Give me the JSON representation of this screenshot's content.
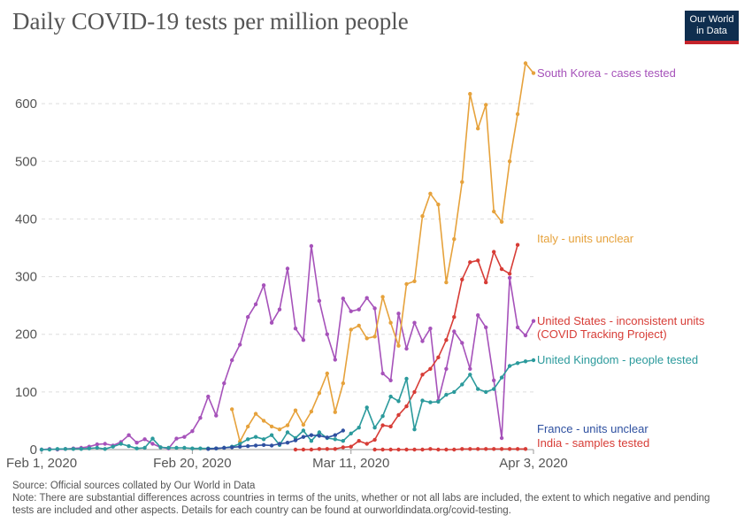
{
  "header": {
    "title": "Daily COVID-19 tests per million people",
    "logo_line1": "Our World",
    "logo_line2": "in Data"
  },
  "footer": {
    "source": "Source: Official sources collated by Our World in Data",
    "note": "Note: There are substantial differences across countries in terms of the units, whether or not all labs are included, the extent to which negative and pending tests are included and other aspects. Details for each country can be found at ourworldindata.org/covid-testing."
  },
  "chart_data": {
    "type": "line",
    "title": "Daily COVID-19 tests per million people",
    "xlabel": "",
    "ylabel": "",
    "x_range": [
      "2020-02-01",
      "2020-04-03"
    ],
    "ylim": [
      0,
      700
    ],
    "y_ticks": [
      0,
      100,
      200,
      300,
      400,
      500,
      600
    ],
    "y_tick_labels": [
      "0",
      "100",
      "200",
      "300",
      "400",
      "500",
      "600"
    ],
    "x_ticks": [
      "2020-02-01",
      "2020-02-20",
      "2020-03-11",
      "2020-04-03"
    ],
    "x_tick_labels": [
      "Feb 1, 2020",
      "Feb 20, 2020",
      "Mar 11, 2020",
      "Apr 3, 2020"
    ],
    "grid": "horizontal dashed",
    "series": [
      {
        "name": "South Korea - cases tested",
        "color": "#a652ba",
        "x": [
          "2020-02-01",
          "2020-02-02",
          "2020-02-03",
          "2020-02-04",
          "2020-02-05",
          "2020-02-06",
          "2020-02-07",
          "2020-02-08",
          "2020-02-09",
          "2020-02-10",
          "2020-02-11",
          "2020-02-12",
          "2020-02-13",
          "2020-02-14",
          "2020-02-15",
          "2020-02-16",
          "2020-02-17",
          "2020-02-18",
          "2020-02-19",
          "2020-02-20",
          "2020-02-21",
          "2020-02-22",
          "2020-02-23",
          "2020-02-24",
          "2020-02-25",
          "2020-02-26",
          "2020-02-27",
          "2020-02-28",
          "2020-02-29",
          "2020-03-01",
          "2020-03-02",
          "2020-03-03",
          "2020-03-04",
          "2020-03-05",
          "2020-03-06",
          "2020-03-07",
          "2020-03-08",
          "2020-03-09",
          "2020-03-10",
          "2020-03-11",
          "2020-03-12",
          "2020-03-13",
          "2020-03-14",
          "2020-03-15",
          "2020-03-16",
          "2020-03-17",
          "2020-03-18",
          "2020-03-19",
          "2020-03-20",
          "2020-03-21",
          "2020-03-22",
          "2020-03-23",
          "2020-03-24",
          "2020-03-25",
          "2020-03-26",
          "2020-03-27",
          "2020-03-28",
          "2020-03-29",
          "2020-03-30",
          "2020-03-31",
          "2020-04-01",
          "2020-04-02",
          "2020-04-03"
        ],
        "values": [
          0,
          1,
          0,
          1,
          2,
          3,
          5,
          9,
          10,
          7,
          13,
          25,
          12,
          18,
          10,
          4,
          2,
          19,
          22,
          32,
          55,
          92,
          59,
          115,
          155,
          182,
          230,
          252,
          285,
          220,
          243,
          314,
          210,
          190,
          353,
          258,
          200,
          156,
          262,
          240,
          243,
          263,
          245,
          132,
          120,
          236,
          175,
          220,
          188,
          210,
          85,
          140,
          205,
          185,
          140,
          233,
          212,
          120,
          20,
          298,
          212,
          198,
          223
        ]
      },
      {
        "name": "Italy - units unclear",
        "color": "#e6a23c",
        "x": [
          "2020-02-25",
          "2020-02-26",
          "2020-02-27",
          "2020-02-28",
          "2020-02-29",
          "2020-03-01",
          "2020-03-02",
          "2020-03-03",
          "2020-03-04",
          "2020-03-05",
          "2020-03-06",
          "2020-03-07",
          "2020-03-08",
          "2020-03-09",
          "2020-03-10",
          "2020-03-11",
          "2020-03-12",
          "2020-03-13",
          "2020-03-14",
          "2020-03-15",
          "2020-03-16",
          "2020-03-17",
          "2020-03-18",
          "2020-03-19",
          "2020-03-20",
          "2020-03-21",
          "2020-03-22",
          "2020-03-23",
          "2020-03-24",
          "2020-03-25",
          "2020-03-26",
          "2020-03-27",
          "2020-03-28",
          "2020-03-29",
          "2020-03-30",
          "2020-03-31",
          "2020-04-01",
          "2020-04-02",
          "2020-04-03"
        ],
        "values": [
          70,
          14,
          40,
          62,
          50,
          40,
          35,
          42,
          68,
          43,
          66,
          98,
          132,
          65,
          115,
          208,
          215,
          193,
          196,
          265,
          220,
          180,
          287,
          292,
          405,
          444,
          425,
          290,
          365,
          464,
          617,
          557,
          598,
          413,
          395,
          500,
          582,
          670,
          653
        ]
      },
      {
        "name": "United States - inconsistent units\n(COVID Tracking Project)",
        "color": "#d73c36",
        "x": [
          "2020-03-04",
          "2020-03-05",
          "2020-03-06",
          "2020-03-07",
          "2020-03-08",
          "2020-03-09",
          "2020-03-10",
          "2020-03-11",
          "2020-03-12",
          "2020-03-13",
          "2020-03-14",
          "2020-03-15",
          "2020-03-16",
          "2020-03-17",
          "2020-03-18",
          "2020-03-19",
          "2020-03-20",
          "2020-03-21",
          "2020-03-22",
          "2020-03-23",
          "2020-03-24",
          "2020-03-25",
          "2020-03-26",
          "2020-03-27",
          "2020-03-28",
          "2020-03-29",
          "2020-03-30",
          "2020-03-31",
          "2020-04-01",
          "2020-04-02",
          "2020-04-03"
        ],
        "values": [
          0,
          0,
          0,
          1,
          1,
          1,
          4,
          5,
          15,
          10,
          17,
          42,
          40,
          60,
          75,
          100,
          130,
          140,
          160,
          190,
          230,
          295,
          325,
          328,
          290,
          343,
          313,
          305,
          355,
          null,
          null
        ]
      },
      {
        "name": "United Kingdom - people tested",
        "color": "#2b9a9c",
        "x": [
          "2020-02-01",
          "2020-02-02",
          "2020-02-03",
          "2020-02-04",
          "2020-02-05",
          "2020-02-06",
          "2020-02-07",
          "2020-02-08",
          "2020-02-09",
          "2020-02-10",
          "2020-02-11",
          "2020-02-12",
          "2020-02-13",
          "2020-02-14",
          "2020-02-15",
          "2020-02-16",
          "2020-02-17",
          "2020-02-18",
          "2020-02-19",
          "2020-02-20",
          "2020-02-21",
          "2020-02-22",
          "2020-02-23",
          "2020-02-24",
          "2020-02-25",
          "2020-02-26",
          "2020-02-27",
          "2020-02-28",
          "2020-02-29",
          "2020-03-01",
          "2020-03-02",
          "2020-03-03",
          "2020-03-04",
          "2020-03-05",
          "2020-03-06",
          "2020-03-07",
          "2020-03-08",
          "2020-03-09",
          "2020-03-10",
          "2020-03-11",
          "2020-03-12",
          "2020-03-13",
          "2020-03-14",
          "2020-03-15",
          "2020-03-16",
          "2020-03-17",
          "2020-03-18",
          "2020-03-19",
          "2020-03-20",
          "2020-03-21",
          "2020-03-22",
          "2020-03-23",
          "2020-03-24",
          "2020-03-25",
          "2020-03-26",
          "2020-03-27",
          "2020-03-28",
          "2020-03-29",
          "2020-03-30",
          "2020-03-31",
          "2020-04-01",
          "2020-04-02",
          "2020-04-03"
        ],
        "values": [
          0,
          0,
          1,
          1,
          1,
          1,
          2,
          3,
          1,
          5,
          10,
          6,
          2,
          3,
          19,
          4,
          3,
          3,
          3,
          2,
          2,
          2,
          2,
          3,
          5,
          10,
          18,
          22,
          18,
          25,
          8,
          30,
          20,
          33,
          15,
          30,
          20,
          18,
          15,
          28,
          38,
          73,
          38,
          58,
          92,
          84,
          123,
          35,
          85,
          82,
          83,
          95,
          100,
          113,
          130,
          105,
          100,
          105,
          125,
          145,
          150,
          153,
          155
        ]
      },
      {
        "name": "France - units unclear",
        "color": "#2e50a0",
        "x": [
          "2020-02-22",
          "2020-02-23",
          "2020-02-24",
          "2020-02-25",
          "2020-02-26",
          "2020-02-27",
          "2020-02-28",
          "2020-02-29",
          "2020-03-01",
          "2020-03-02",
          "2020-03-03",
          "2020-03-04",
          "2020-03-05",
          "2020-03-06",
          "2020-03-07",
          "2020-03-08",
          "2020-03-09",
          "2020-03-10"
        ],
        "values": [
          1,
          2,
          3,
          4,
          5,
          6,
          7,
          8,
          7,
          10,
          12,
          16,
          22,
          25,
          24,
          21,
          25,
          33
        ]
      },
      {
        "name": "India - samples tested",
        "color": "#d73c36",
        "x": [
          "2020-03-14",
          "2020-03-15",
          "2020-03-16",
          "2020-03-17",
          "2020-03-18",
          "2020-03-19",
          "2020-03-20",
          "2020-03-21",
          "2020-03-22",
          "2020-03-23",
          "2020-03-24",
          "2020-03-25",
          "2020-03-26",
          "2020-03-27",
          "2020-03-28",
          "2020-03-29",
          "2020-03-30",
          "2020-03-31",
          "2020-04-01",
          "2020-04-02"
        ],
        "values": [
          0,
          0,
          0,
          0,
          0,
          0,
          0,
          1,
          0,
          0,
          0,
          1,
          1,
          1,
          1,
          1,
          1,
          1,
          1,
          1
        ]
      }
    ]
  }
}
